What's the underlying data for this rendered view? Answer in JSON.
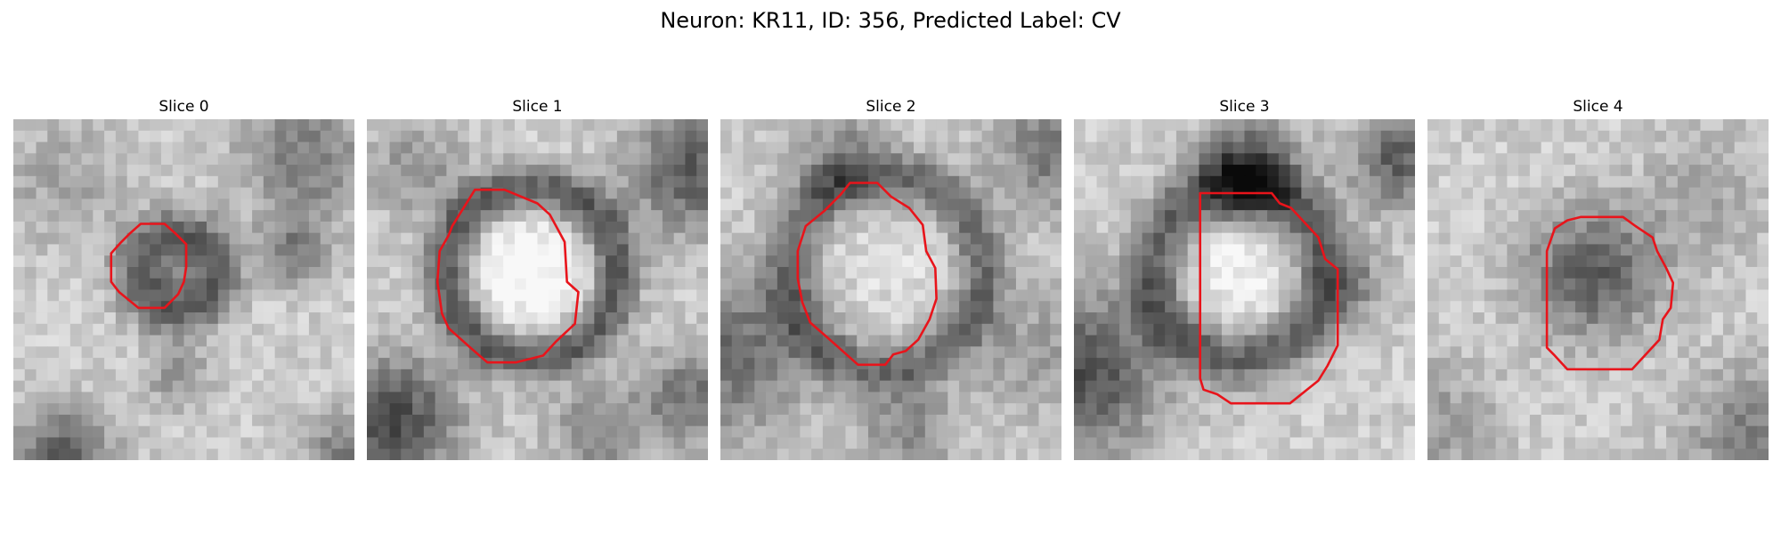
{
  "figure": {
    "title": "Neuron: KR11, ID: 356, Predicted Label: CV"
  },
  "colors": {
    "background": "#ffffff",
    "outline": "#e8141b"
  },
  "panels": [
    {
      "title": "Slice 0"
    },
    {
      "title": "Slice 1"
    },
    {
      "title": "Slice 2"
    },
    {
      "title": "Slice 3"
    },
    {
      "title": "Slice 4"
    }
  ]
}
